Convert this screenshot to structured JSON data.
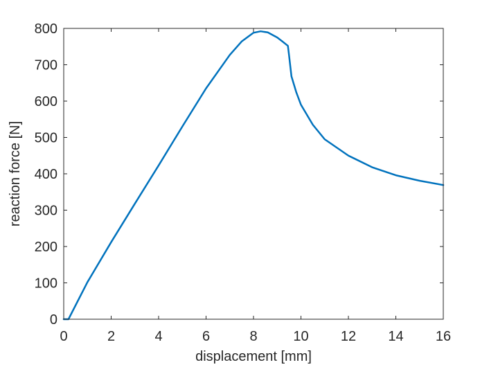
{
  "chart_data": {
    "type": "line",
    "title": "",
    "xlabel": "displacement [mm]",
    "ylabel": "reaction force [N]",
    "xlim": [
      0,
      16
    ],
    "ylim": [
      0,
      800
    ],
    "xticks": [
      0,
      2,
      4,
      6,
      8,
      10,
      12,
      14,
      16
    ],
    "yticks": [
      0,
      100,
      200,
      300,
      400,
      500,
      600,
      700,
      800
    ],
    "grid": false,
    "legend": "none",
    "series": [
      {
        "color": "#0072BD",
        "x": [
          0,
          0.2,
          1,
          2,
          3,
          4,
          5,
          6,
          7,
          7.5,
          8,
          8.3,
          8.6,
          9,
          9.2,
          9.45,
          9.5,
          9.6,
          9.8,
          10,
          10.5,
          11,
          12,
          13,
          14,
          15,
          16
        ],
        "y": [
          0,
          0,
          102,
          212,
          318,
          423,
          530,
          635,
          727,
          764,
          788,
          792,
          789,
          775,
          765,
          752,
          725,
          668,
          625,
          590,
          535,
          495,
          450,
          418,
          396,
          381,
          369
        ]
      }
    ]
  }
}
